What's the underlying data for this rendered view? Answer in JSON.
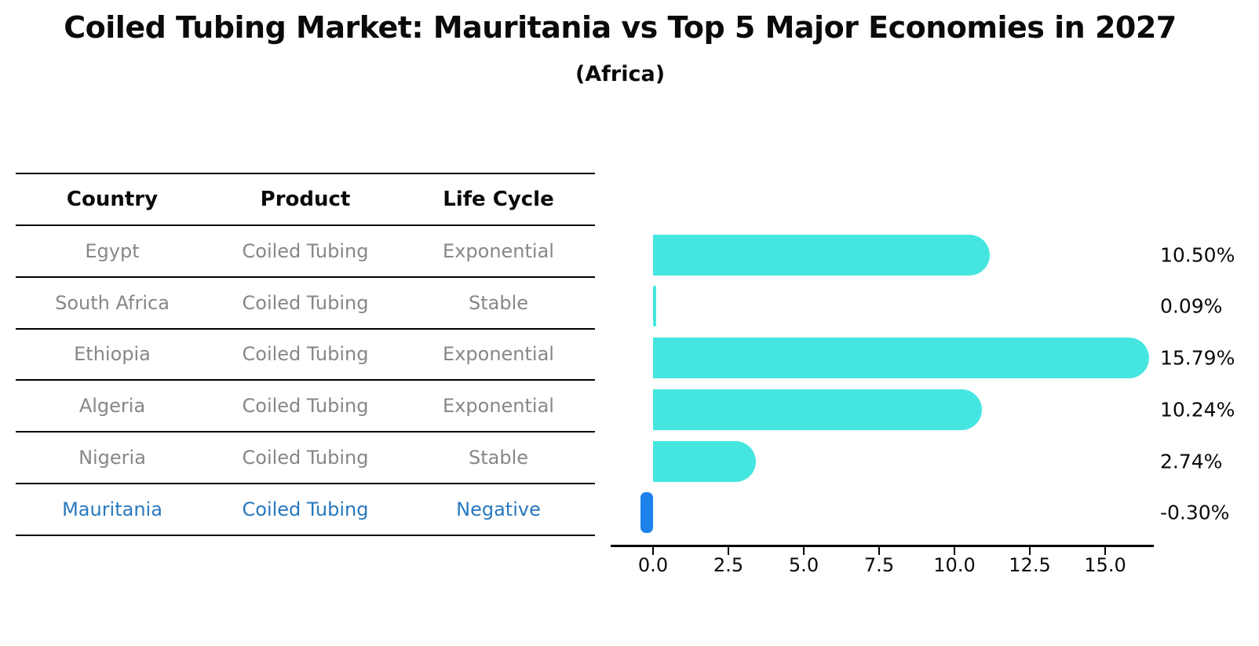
{
  "header": {
    "title": "Coiled Tubing Market: Mauritania vs Top 5 Major Economies in 2027",
    "subtitle": "(Africa)"
  },
  "table": {
    "columns": [
      "Country",
      "Product",
      "Life Cycle"
    ],
    "rows": [
      {
        "country": "Egypt",
        "product": "Coiled Tubing",
        "life_cycle": "Exponential",
        "highlight": false
      },
      {
        "country": "South Africa",
        "product": "Coiled Tubing",
        "life_cycle": "Stable",
        "highlight": false
      },
      {
        "country": "Ethiopia",
        "product": "Coiled Tubing",
        "life_cycle": "Exponential",
        "highlight": false
      },
      {
        "country": "Algeria",
        "product": "Coiled Tubing",
        "life_cycle": "Exponential",
        "highlight": false
      },
      {
        "country": "Nigeria",
        "product": "Coiled Tubing",
        "life_cycle": "Stable",
        "highlight": false
      },
      {
        "country": "Mauritania",
        "product": "Coiled Tubing",
        "life_cycle": "Negative",
        "highlight": true
      }
    ]
  },
  "chart_data": {
    "type": "bar",
    "orientation": "horizontal",
    "title": "Coiled Tubing Market: Mauritania vs Top 5 Major Economies in 2027 (Africa)",
    "categories": [
      "Egypt",
      "South Africa",
      "Ethiopia",
      "Algeria",
      "Nigeria",
      "Mauritania"
    ],
    "values": [
      10.5,
      0.09,
      15.79,
      10.24,
      2.74,
      -0.3
    ],
    "value_labels": [
      "10.50%",
      "0.09%",
      "15.79%",
      "10.24%",
      "2.74%",
      "-0.30%"
    ],
    "x_ticks": [
      0.0,
      2.5,
      5.0,
      7.5,
      10.0,
      12.5,
      15.0
    ],
    "x_tick_labels": [
      "0.0",
      "2.5",
      "5.0",
      "7.5",
      "10.0",
      "12.5",
      "15.0"
    ],
    "xlim": [
      -1.4,
      16.6
    ],
    "xlabel": "",
    "ylabel": "",
    "grid": false,
    "legend_position": "none",
    "bar_color": "#45E6E0",
    "negative_bar_color": "#1E82EC",
    "highlight_text_color": "#2878BE"
  }
}
